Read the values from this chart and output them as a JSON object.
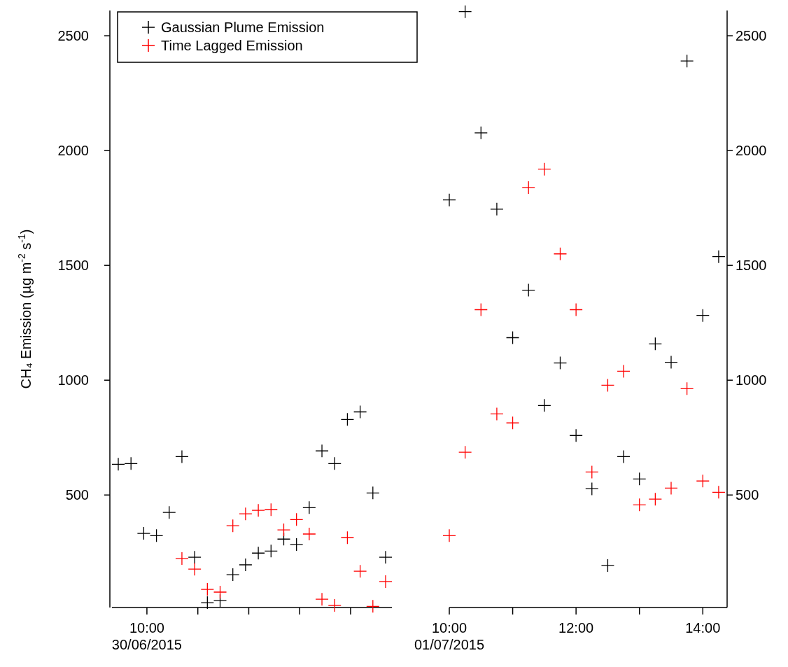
{
  "chart_data": [
    {
      "type": "scatter",
      "ylabel": "CH₄ Emission (µg m$^{-2}$ s$^{-1}$)",
      "legend": "top left",
      "marker": "cross",
      "categories": [
        null,
        null,
        null,
        null,
        null,
        null,
        null,
        null,
        null,
        null,
        null,
        null,
        null,
        null,
        null,
        null,
        null,
        null,
        null,
        null,
        null,
        null
      ],
      "annotations": [
        "10:00\n30/06/2015"
      ],
      "ylim": [
        10,
        2610
      ],
      "yticks": [
        500,
        1000,
        1500,
        2000,
        2500
      ],
      "series": [
        {
          "name": "Gaussian Plume Emission",
          "color": "#000000",
          "values": [
            634,
            637,
            333,
            323,
            424,
            667,
            229,
            31,
            40,
            153,
            196,
            247,
            256,
            308,
            284,
            445,
            692,
            637,
            829,
            862,
            509,
            229
          ]
        },
        {
          "name": "Time Lagged Emission",
          "color": "#ff0000",
          "values": [
            null,
            null,
            null,
            null,
            null,
            223,
            177,
            89,
            77,
            366,
            418,
            433,
            436,
            348,
            393,
            330,
            46,
            19,
            314,
            168,
            15,
            123
          ]
        }
      ]
    },
    {
      "type": "scatter",
      "marker": "cross",
      "xlim": [
        "2015-07-01T10:00",
        "2015-07-01T14:23"
      ],
      "xticks": [
        {
          "value": "2015-07-01T10:00",
          "label": "10:00\n01/07/2015"
        },
        {
          "value": "2015-07-01T11:00",
          "label": null
        },
        {
          "value": "2015-07-01T12:00",
          "label": "12:00"
        },
        {
          "value": "2015-07-01T13:00",
          "label": null
        },
        {
          "value": "2015-07-01T14:00",
          "label": "14:00"
        }
      ],
      "y2lim": [
        10,
        2610
      ],
      "y2ticks": [
        500,
        1000,
        1500,
        2000,
        2500
      ],
      "series": [
        {
          "color": "#000000",
          "axis": "y2",
          "x": [
            "2015-07-01T10:00",
            "2015-07-01T10:15",
            "2015-07-01T10:30",
            "2015-07-01T10:45",
            "2015-07-01T11:00",
            "2015-07-01T11:15",
            "2015-07-01T11:30",
            "2015-07-01T11:45",
            "2015-07-01T12:00",
            "2015-07-01T12:15",
            "2015-07-01T12:30",
            "2015-07-01T12:45",
            "2015-07-01T13:00",
            "2015-07-01T13:15",
            "2015-07-01T13:30",
            "2015-07-01T13:45",
            "2015-07-01T14:00",
            "2015-07-01T14:15"
          ],
          "values": [
            1785,
            2605,
            2077,
            1745,
            1185,
            1392,
            890,
            1075,
            759,
            527,
            193,
            667,
            570,
            1158,
            1078,
            2390,
            1282,
            1538
          ]
        },
        {
          "color": "#ff0000",
          "axis": "y2",
          "x": [
            "2015-07-01T10:00",
            "2015-07-01T10:15",
            "2015-07-01T10:30",
            "2015-07-01T10:45",
            "2015-07-01T11:00",
            "2015-07-01T11:15",
            "2015-07-01T11:30",
            "2015-07-01T11:45",
            "2015-07-01T12:00",
            "2015-07-01T12:15",
            "2015-07-01T12:30",
            "2015-07-01T12:45",
            "2015-07-01T13:00",
            "2015-07-01T13:15",
            "2015-07-01T13:30",
            "2015-07-01T13:45",
            "2015-07-01T14:00",
            "2015-07-01T14:15"
          ],
          "values": [
            323,
            686,
            1307,
            853,
            814,
            1839,
            1919,
            1550,
            1307,
            600,
            978,
            1039,
            457,
            482,
            530,
            963,
            561,
            512
          ]
        }
      ]
    }
  ]
}
